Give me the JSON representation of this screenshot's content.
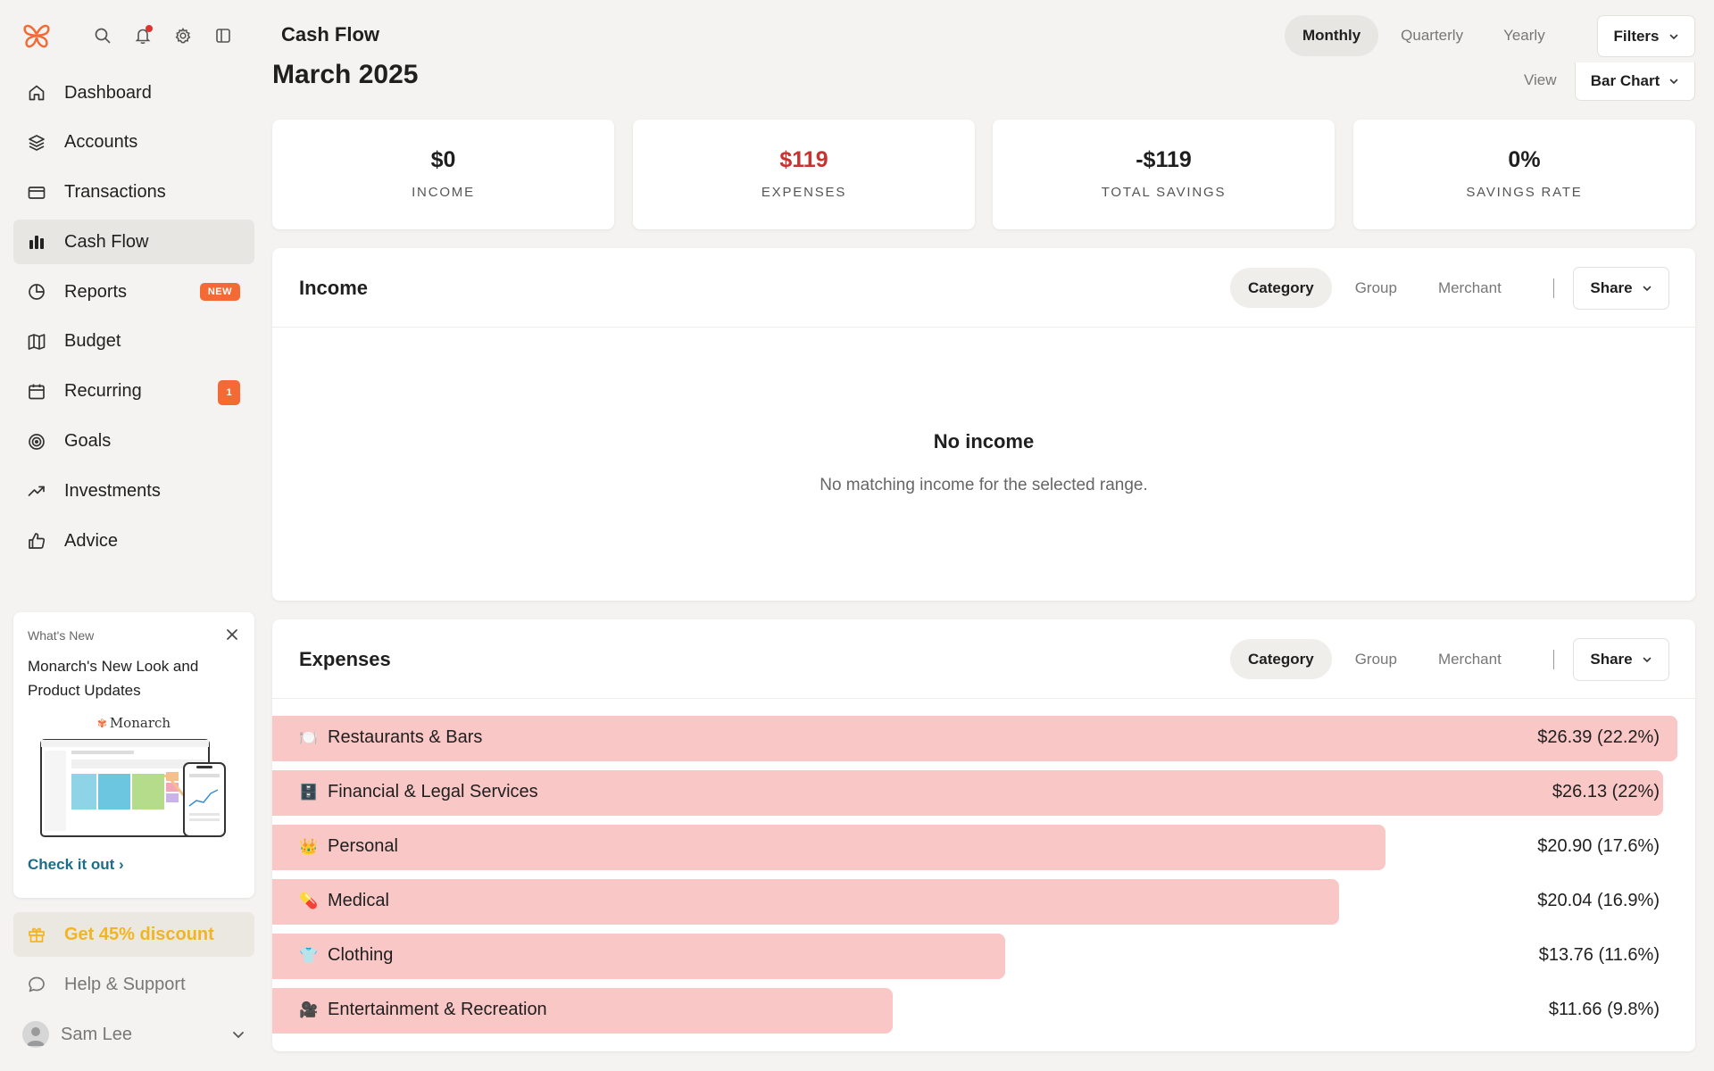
{
  "header": {
    "title": "Cash Flow",
    "period_tabs": [
      {
        "label": "Monthly",
        "active": true
      },
      {
        "label": "Quarterly",
        "active": false
      },
      {
        "label": "Yearly",
        "active": false
      }
    ],
    "filters_label": "Filters"
  },
  "sidebar": {
    "top_icons": [
      "monarch-logo-icon",
      "search-icon",
      "bell-icon",
      "gear-icon",
      "sidebar-toggle-icon"
    ],
    "items": [
      {
        "label": "Dashboard",
        "icon": "home-icon"
      },
      {
        "label": "Accounts",
        "icon": "layers-icon"
      },
      {
        "label": "Transactions",
        "icon": "card-icon"
      },
      {
        "label": "Cash Flow",
        "icon": "bar-chart-icon",
        "active": true
      },
      {
        "label": "Reports",
        "icon": "pie-icon",
        "badge": "NEW"
      },
      {
        "label": "Budget",
        "icon": "map-icon"
      },
      {
        "label": "Recurring",
        "icon": "calendar-icon",
        "badge_count": "1"
      },
      {
        "label": "Goals",
        "icon": "target-icon"
      },
      {
        "label": "Investments",
        "icon": "trend-up-icon"
      },
      {
        "label": "Advice",
        "icon": "thumbs-up-icon"
      }
    ],
    "whats_new": {
      "label": "What's New",
      "title": "Monarch's New Look and Product Updates",
      "brand": "Monarch",
      "link": "Check it out"
    },
    "discount_label": "Get 45% discount",
    "help_label": "Help & Support",
    "user_name": "Sam Lee"
  },
  "main": {
    "month_title": "March 2025",
    "view_label": "View",
    "view_value": "Bar Chart",
    "stats": [
      {
        "value": "$0",
        "label": "INCOME"
      },
      {
        "value": "$119",
        "label": "EXPENSES",
        "color": "#c8322f"
      },
      {
        "value": "-$119",
        "label": "TOTAL SAVINGS"
      },
      {
        "value": "0%",
        "label": "SAVINGS RATE"
      }
    ],
    "income": {
      "title": "Income",
      "tabs": [
        "Category",
        "Group",
        "Merchant"
      ],
      "share_label": "Share",
      "empty_title": "No income",
      "empty_sub": "No matching income for the selected range."
    },
    "expenses": {
      "title": "Expenses",
      "tabs": [
        "Category",
        "Group",
        "Merchant"
      ],
      "share_label": "Share",
      "bar_color": "#f9c7c6",
      "items": [
        {
          "name": "Restaurants & Bars",
          "emoji": "🍽️",
          "amount": "$26.39 (22.2%)",
          "value": 26.39
        },
        {
          "name": "Financial & Legal Services",
          "emoji": "🗄️",
          "amount": "$26.13 (22%)",
          "value": 26.13
        },
        {
          "name": "Personal",
          "emoji": "👑",
          "amount": "$20.90 (17.6%)",
          "value": 20.9
        },
        {
          "name": "Medical",
          "emoji": "💊",
          "amount": "$20.04 (16.9%)",
          "value": 20.04
        },
        {
          "name": "Clothing",
          "emoji": "👕",
          "amount": "$13.76 (11.6%)",
          "value": 13.76
        },
        {
          "name": "Entertainment & Recreation",
          "emoji": "🎥",
          "amount": "$11.66 (9.8%)",
          "value": 11.66
        }
      ]
    }
  }
}
